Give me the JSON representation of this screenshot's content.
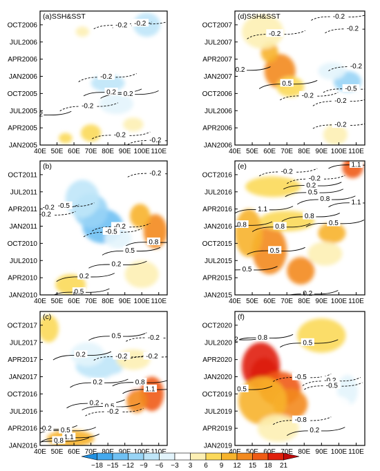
{
  "chart_data": {
    "type": "heatmap",
    "xlabel": "",
    "ylabel": "",
    "x_ticks": [
      "40E",
      "50E",
      "60E",
      "70E",
      "80E",
      "90E",
      "100E",
      "110E"
    ],
    "panels": [
      {
        "id": "a",
        "title": "(a)SSH&SST",
        "y_ticks": [
          "JAN2005",
          "APR2005",
          "JUL2005",
          "OCT2005",
          "JAN2006",
          "APR2006",
          "JUL2006",
          "OCT2006"
        ],
        "contour_labels": [
          {
            "text": "-0.2",
            "x": 88,
            "y": 7.0
          },
          {
            "text": "-0.2",
            "x": 99,
            "y": 7.1
          },
          {
            "text": "-0.2",
            "x": 79,
            "y": 4.0
          },
          {
            "text": "0.2",
            "x": 82,
            "y": 3.1
          },
          {
            "text": "0.2",
            "x": 92,
            "y": 3.0
          },
          {
            "text": "-0.2",
            "x": 68,
            "y": 2.3
          },
          {
            "text": "-0.2",
            "x": 87,
            "y": 0.6
          },
          {
            "text": "-0.2",
            "x": 108,
            "y": 0.3
          },
          {
            "text": "2",
            "x": 40.5,
            "y": 1.8
          }
        ],
        "color_field": [
          {
            "value": -9,
            "x": 80,
            "y": 3.6,
            "rx": 10,
            "ry": 0.5
          },
          {
            "value": -6,
            "x": 85,
            "y": 2.4,
            "rx": 10,
            "ry": 0.6
          },
          {
            "value": -9,
            "x": 103,
            "y": 7.0,
            "rx": 8,
            "ry": 0.7
          },
          {
            "value": -3,
            "x": 73,
            "y": 4.6,
            "rx": 7,
            "ry": 0.4
          },
          {
            "value": 6,
            "x": 70,
            "y": 0.7,
            "rx": 6,
            "ry": 0.5
          },
          {
            "value": 6,
            "x": 55,
            "y": 0.4,
            "rx": 4,
            "ry": 0.3
          },
          {
            "value": 3,
            "x": 65,
            "y": 6.6,
            "rx": 4,
            "ry": 0.3
          },
          {
            "value": 3,
            "x": 95,
            "y": 1.2,
            "rx": 6,
            "ry": 0.4
          }
        ]
      },
      {
        "id": "d",
        "title": "(d)SSH&SST",
        "y_ticks": [
          "JAN2006",
          "APR2006",
          "JUL2006",
          "OCT2006",
          "JAN2007",
          "APR2007",
          "JUL2007",
          "OCT2007"
        ],
        "contour_labels": [
          {
            "text": "-0.2",
            "x": 100,
            "y": 7.5
          },
          {
            "text": "-0.2",
            "x": 108,
            "y": 6.8
          },
          {
            "text": "-0.2",
            "x": 63,
            "y": 6.5
          },
          {
            "text": "0.2",
            "x": 43,
            "y": 4.4
          },
          {
            "text": "-0.2",
            "x": 110,
            "y": 4.6
          },
          {
            "text": "0.5",
            "x": 70,
            "y": 3.6
          },
          {
            "text": "-0.5",
            "x": 107,
            "y": 3.3
          },
          {
            "text": "-0.2",
            "x": 82,
            "y": 2.9
          },
          {
            "text": "-0.2",
            "x": 101,
            "y": 2.6
          },
          {
            "text": "-0.2",
            "x": 101,
            "y": 1.2
          }
        ],
        "color_field": [
          {
            "value": 12,
            "x": 66,
            "y": 4.3,
            "rx": 9,
            "ry": 1.0
          },
          {
            "value": 9,
            "x": 60,
            "y": 5.4,
            "rx": 5,
            "ry": 0.6
          },
          {
            "value": 6,
            "x": 72,
            "y": 3.4,
            "rx": 8,
            "ry": 0.6
          },
          {
            "value": 3,
            "x": 56,
            "y": 6.6,
            "rx": 12,
            "ry": 1.0
          },
          {
            "value": -12,
            "x": 105,
            "y": 3.7,
            "rx": 8,
            "ry": 0.6
          },
          {
            "value": -6,
            "x": 96,
            "y": 4.3,
            "rx": 8,
            "ry": 0.5
          },
          {
            "value": -3,
            "x": 88,
            "y": 5.3,
            "rx": 8,
            "ry": 0.6
          },
          {
            "value": 3,
            "x": 98,
            "y": 0.6,
            "rx": 7,
            "ry": 0.6
          }
        ]
      },
      {
        "id": "b",
        "title": "(b)",
        "y_ticks": [
          "JAN2010",
          "APR2010",
          "JUL2010",
          "OCT2010",
          "JAN2011",
          "APR2011",
          "JUL2011",
          "OCT2011"
        ],
        "contour_labels": [
          {
            "text": "-0.2",
            "x": 108,
            "y": 7.1
          },
          {
            "text": "-0.2",
            "x": 45,
            "y": 5.1
          },
          {
            "text": "-0.2",
            "x": 43,
            "y": 4.7
          },
          {
            "text": "-0.5",
            "x": 54,
            "y": 5.2
          },
          {
            "text": "-0.2",
            "x": 87,
            "y": 4.0
          },
          {
            "text": "-0.5",
            "x": 82,
            "y": 3.7
          },
          {
            "text": "0.8",
            "x": 107,
            "y": 3.1
          },
          {
            "text": "0.5",
            "x": 93,
            "y": 2.6
          },
          {
            "text": "0.2",
            "x": 66,
            "y": 1.1
          },
          {
            "text": "0.2",
            "x": 85,
            "y": 1.8
          },
          {
            "text": "0.5",
            "x": 63,
            "y": 0.2
          }
        ],
        "color_field": [
          {
            "value": -15,
            "x": 77,
            "y": 4.0,
            "rx": 12,
            "ry": 1.0
          },
          {
            "value": -12,
            "x": 70,
            "y": 4.9,
            "rx": 10,
            "ry": 1.0
          },
          {
            "value": -9,
            "x": 65,
            "y": 5.6,
            "rx": 10,
            "ry": 1.1
          },
          {
            "value": -6,
            "x": 86,
            "y": 3.3,
            "rx": 8,
            "ry": 0.6
          },
          {
            "value": 12,
            "x": 108,
            "y": 3.7,
            "rx": 7,
            "ry": 1.0
          },
          {
            "value": 9,
            "x": 99,
            "y": 4.6,
            "rx": 6,
            "ry": 0.7
          },
          {
            "value": 6,
            "x": 58,
            "y": 0.6,
            "rx": 9,
            "ry": 0.6
          },
          {
            "value": 3,
            "x": 100,
            "y": 1.2,
            "rx": 10,
            "ry": 0.8
          }
        ]
      },
      {
        "id": "e",
        "title": "(e)",
        "y_ticks": [
          "JAN2015",
          "APR2015",
          "JUL2015",
          "OCT2015",
          "JAN2016",
          "APR2016",
          "JUL2016",
          "OCT2016"
        ],
        "contour_labels": [
          {
            "text": "1.1",
            "x": 110,
            "y": 7.6
          },
          {
            "text": "-0.2",
            "x": 70,
            "y": 7.2
          },
          {
            "text": "-0.2",
            "x": 86,
            "y": 6.8
          },
          {
            "text": "0.2",
            "x": 84,
            "y": 6.4
          },
          {
            "text": "0.5",
            "x": 85,
            "y": 6.0
          },
          {
            "text": "0.8",
            "x": 92,
            "y": 5.6
          },
          {
            "text": "1.1",
            "x": 56,
            "y": 5.0
          },
          {
            "text": "1.1",
            "x": 110,
            "y": 5.4
          },
          {
            "text": "0.8",
            "x": 83,
            "y": 4.6
          },
          {
            "text": "0.5",
            "x": 97,
            "y": 4.2
          },
          {
            "text": "0.8",
            "x": 44,
            "y": 4.1
          },
          {
            "text": "0.8",
            "x": 66,
            "y": 4.0
          },
          {
            "text": "0.5",
            "x": 63,
            "y": 2.6
          },
          {
            "text": "0.5",
            "x": 47,
            "y": 1.5
          },
          {
            "text": "0.2",
            "x": 82,
            "y": 0.1
          }
        ],
        "color_field": [
          {
            "value": 15,
            "x": 108,
            "y": 7.4,
            "rx": 6,
            "ry": 0.6
          },
          {
            "value": 12,
            "x": 60,
            "y": 2.6,
            "rx": 10,
            "ry": 1.4
          },
          {
            "value": 12,
            "x": 78,
            "y": 1.4,
            "rx": 8,
            "ry": 0.8
          },
          {
            "value": 9,
            "x": 48,
            "y": 3.6,
            "rx": 8,
            "ry": 1.4
          },
          {
            "value": 9,
            "x": 96,
            "y": 3.6,
            "rx": 8,
            "ry": 0.6
          },
          {
            "value": 6,
            "x": 70,
            "y": 4.3,
            "rx": 16,
            "ry": 0.6
          },
          {
            "value": 6,
            "x": 62,
            "y": 6.3,
            "rx": 16,
            "ry": 0.6
          },
          {
            "value": 3,
            "x": 92,
            "y": 2.4,
            "rx": 10,
            "ry": 0.7
          },
          {
            "value": -3,
            "x": 70,
            "y": 7.4,
            "rx": 8,
            "ry": 0.4
          }
        ]
      },
      {
        "id": "c",
        "title": "(c)",
        "y_ticks": [
          "JAN2016",
          "APR2016",
          "JUL2016",
          "OCT2016",
          "JAN2017",
          "APR2017",
          "JUL2017",
          "OCT2017"
        ],
        "contour_labels": [
          {
            "text": "-0.2",
            "x": 107,
            "y": 6.3
          },
          {
            "text": "0.5",
            "x": 85,
            "y": 6.4
          },
          {
            "text": "0.2",
            "x": 64,
            "y": 5.3
          },
          {
            "text": "-0.2",
            "x": 88,
            "y": 5.2
          },
          {
            "text": "-0.2",
            "x": 106,
            "y": 5.2
          },
          {
            "text": "0.2",
            "x": 74,
            "y": 3.7
          },
          {
            "text": "0.8",
            "x": 99,
            "y": 3.7
          },
          {
            "text": "1.1",
            "x": 105,
            "y": 3.3
          },
          {
            "text": "0.2",
            "x": 72,
            "y": 2.5
          },
          {
            "text": "0.5",
            "x": 81,
            "y": 2.3
          },
          {
            "text": "-0.2",
            "x": 83,
            "y": 2.0
          },
          {
            "text": "0.2",
            "x": 44,
            "y": 1.0
          },
          {
            "text": "0.5",
            "x": 55,
            "y": 0.9
          },
          {
            "text": "1.1",
            "x": 57,
            "y": 0.5
          },
          {
            "text": "0.8",
            "x": 51,
            "y": 0.3
          }
        ],
        "color_field": [
          {
            "value": -9,
            "x": 75,
            "y": 4.6,
            "rx": 14,
            "ry": 0.7
          },
          {
            "value": -6,
            "x": 68,
            "y": 5.3,
            "rx": 10,
            "ry": 0.7
          },
          {
            "value": -3,
            "x": 88,
            "y": 3.6,
            "rx": 10,
            "ry": 0.6
          },
          {
            "value": 15,
            "x": 106,
            "y": 3.0,
            "rx": 7,
            "ry": 1.0
          },
          {
            "value": 12,
            "x": 97,
            "y": 2.6,
            "rx": 6,
            "ry": 0.7
          },
          {
            "value": 9,
            "x": 58,
            "y": 0.4,
            "rx": 14,
            "ry": 0.5
          },
          {
            "value": 6,
            "x": 45,
            "y": 6.8,
            "rx": 6,
            "ry": 0.8
          },
          {
            "value": 3,
            "x": 95,
            "y": 5.0,
            "rx": 10,
            "ry": 0.6
          }
        ]
      },
      {
        "id": "f",
        "title": "(f)",
        "y_ticks": [
          "JAN2019",
          "APR2019",
          "JUL2019",
          "OCT2019",
          "JAN2020",
          "APR2020",
          "JUL2020",
          "OCT2020"
        ],
        "contour_labels": [
          {
            "text": "0.8",
            "x": 56,
            "y": 6.3
          },
          {
            "text": "0.5",
            "x": 82,
            "y": 6.0
          },
          {
            "text": "2",
            "x": 40.8,
            "y": 6.2
          },
          {
            "text": "0.5",
            "x": 44,
            "y": 3.3
          },
          {
            "text": "-0.5",
            "x": 78,
            "y": 4.0
          },
          {
            "text": "-0.2",
            "x": 95,
            "y": 3.8
          },
          {
            "text": "-0.5",
            "x": 96,
            "y": 3.5
          },
          {
            "text": "-0.8",
            "x": 78,
            "y": 1.5
          },
          {
            "text": "0.2",
            "x": 86,
            "y": 0.9
          }
        ],
        "color_field": [
          {
            "value": 21,
            "x": 57,
            "y": 4.1,
            "rx": 8,
            "ry": 1.0
          },
          {
            "value": 18,
            "x": 55,
            "y": 4.6,
            "rx": 11,
            "ry": 1.4
          },
          {
            "value": 15,
            "x": 66,
            "y": 3.3,
            "rx": 12,
            "ry": 1.0
          },
          {
            "value": 12,
            "x": 72,
            "y": 2.4,
            "rx": 10,
            "ry": 0.9
          },
          {
            "value": 9,
            "x": 56,
            "y": 2.6,
            "rx": 14,
            "ry": 1.4
          },
          {
            "value": 6,
            "x": 90,
            "y": 6.4,
            "rx": 14,
            "ry": 1.0
          },
          {
            "value": 3,
            "x": 65,
            "y": 1.0,
            "rx": 12,
            "ry": 0.8
          },
          {
            "value": -6,
            "x": 105,
            "y": 3.2,
            "rx": 6,
            "ry": 0.9
          },
          {
            "value": -3,
            "x": 98,
            "y": 2.3,
            "rx": 9,
            "ry": 0.6
          }
        ]
      }
    ],
    "colorbar": {
      "labels": [
        "-18",
        "-15",
        "-12",
        "-9",
        "-6",
        "-3",
        "3",
        "6",
        "9",
        "12",
        "15",
        "18",
        "21"
      ],
      "colors": [
        "#1f8fe0",
        "#44a9ee",
        "#6fc0f3",
        "#98d4f6",
        "#bfe5f8",
        "#e3f4fc",
        "#ffffff",
        "#fdf0b4",
        "#fbd95a",
        "#f7b32b",
        "#f38a1f",
        "#ef5b14",
        "#e0200c",
        "#c00a0a"
      ]
    }
  }
}
